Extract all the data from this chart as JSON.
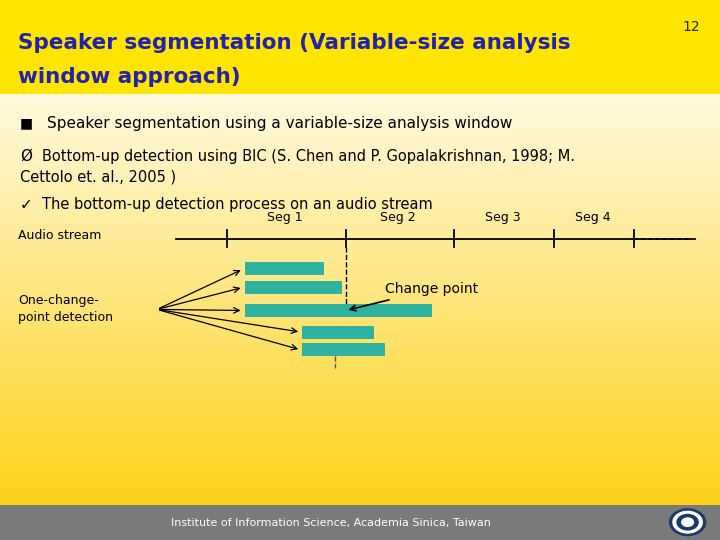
{
  "title_line1": "Speaker segmentation (Variable-size analysis",
  "title_line2": "window approach)",
  "slide_number": "12",
  "title_color": "#2222AA",
  "title_bg": "#FFE500",
  "bullet1_text": "Speaker segmentation using a variable-size analysis window",
  "bullet2_line1": "Bottom-up detection using BIC (S. Chen and P. Gopalakrishnan, 1998; M.",
  "bullet2_line2": "Cettolo et. al., 2005 )",
  "bullet3": "The bottom-up detection process on an audio stream",
  "audio_label": "Audio stream",
  "change_point_label": "Change point",
  "one_change_label": "One-change-\npoint detection",
  "teal_color": "#2DB3A0",
  "footer_text": "Institute of Information Science, Academia Sinica, Taiwan",
  "footer_bg": "#808080"
}
